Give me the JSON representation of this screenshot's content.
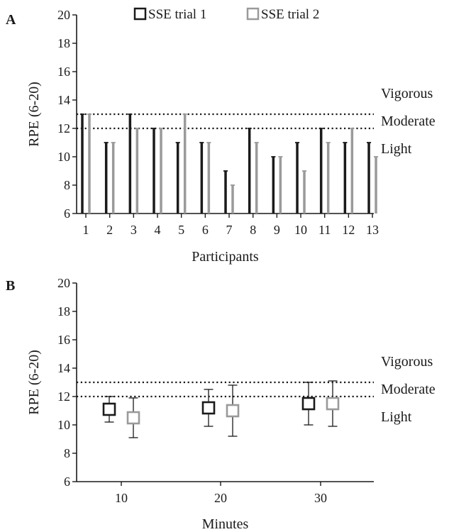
{
  "legend": {
    "items": [
      {
        "label": "SSE trial 1",
        "color": "#1a1a1a"
      },
      {
        "label": "SSE trial 2",
        "color": "#9a9a9a"
      }
    ]
  },
  "zones": {
    "labels": [
      "Vigorous",
      "Moderate",
      "Light"
    ],
    "thresholds": [
      12,
      13
    ]
  },
  "colors": {
    "trial1": "#1a1a1a",
    "trial2": "#9a9a9a",
    "axis": "#1a1a1a"
  },
  "chart_data": [
    {
      "panel": "A",
      "type": "bar",
      "xlabel": "Participants",
      "ylabel": "RPE (6-20)",
      "ylim": [
        6,
        20
      ],
      "yticks": [
        6,
        8,
        10,
        12,
        14,
        16,
        18,
        20
      ],
      "categories": [
        "1",
        "2",
        "3",
        "4",
        "5",
        "6",
        "7",
        "8",
        "9",
        "10",
        "11",
        "12",
        "13"
      ],
      "series": [
        {
          "name": "SSE trial 1",
          "values": [
            13,
            11,
            13,
            12,
            11,
            11,
            9,
            12,
            10,
            11,
            12,
            11,
            11
          ]
        },
        {
          "name": "SSE trial 2",
          "values": [
            13,
            11,
            12,
            12,
            13,
            11,
            8,
            11,
            10,
            9,
            11,
            12,
            10
          ]
        }
      ],
      "reference_lines": [
        12,
        13
      ],
      "grid": false
    },
    {
      "panel": "B",
      "type": "scatter",
      "xlabel": "Minutes",
      "ylabel": "RPE (6-20)",
      "ylim": [
        6,
        20
      ],
      "yticks": [
        6,
        8,
        10,
        12,
        14,
        16,
        18,
        20
      ],
      "categories": [
        "10",
        "20",
        "30"
      ],
      "series": [
        {
          "name": "SSE trial 1",
          "values": [
            11.1,
            11.2,
            11.5
          ],
          "err_low": [
            10.2,
            9.9,
            10.0
          ],
          "err_high": [
            12.0,
            12.5,
            13.0
          ]
        },
        {
          "name": "SSE trial 2",
          "values": [
            10.5,
            11.0,
            11.5
          ],
          "err_low": [
            9.1,
            9.2,
            9.9
          ],
          "err_high": [
            11.9,
            12.8,
            13.1
          ]
        }
      ],
      "reference_lines": [
        12,
        13
      ],
      "grid": false
    }
  ]
}
